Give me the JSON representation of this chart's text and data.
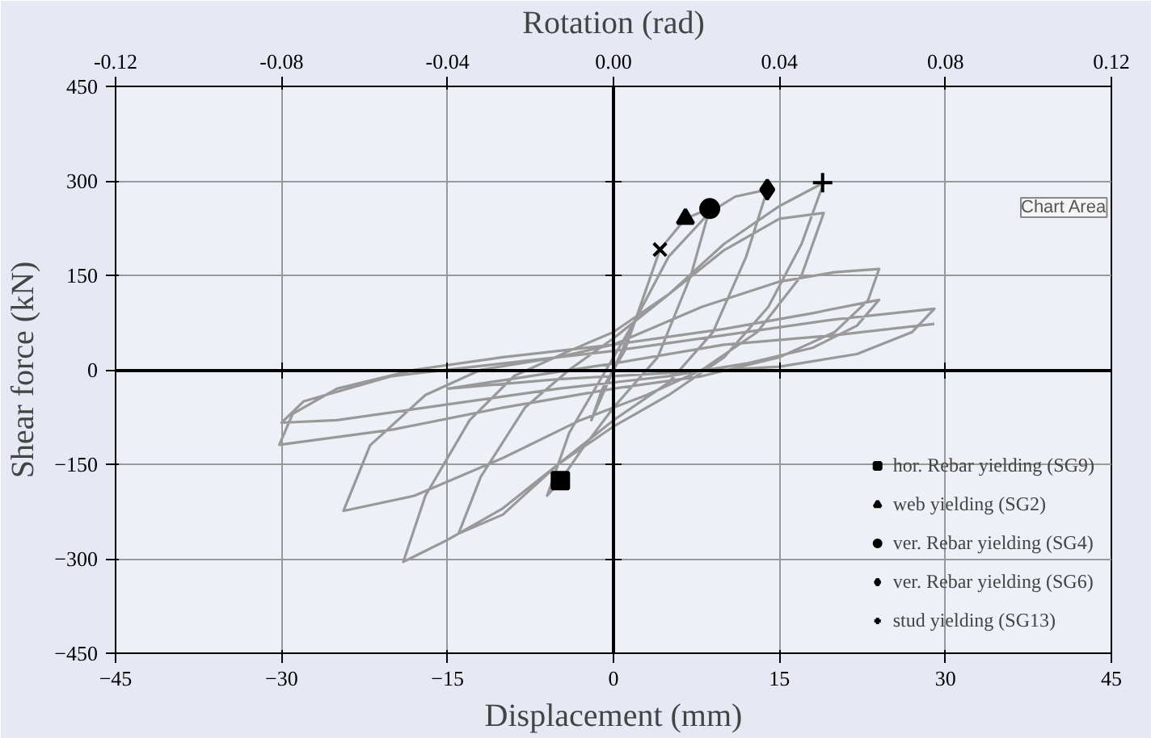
{
  "chart_data": {
    "type": "line",
    "xlabel": "Displacement (mm)",
    "ylabel": "Shear force (kN)",
    "x2label": "Rotation (rad)",
    "xlim": [
      -45,
      45
    ],
    "xticks": [
      -45,
      -30,
      -15,
      0,
      15,
      30,
      45
    ],
    "ylim": [
      -450,
      450
    ],
    "yticks": [
      -450,
      -300,
      -150,
      0,
      150,
      300,
      450
    ],
    "x2lim": [
      -0.12,
      0.12
    ],
    "x2ticks": [
      {
        "value": -0.12,
        "label": "-0.12"
      },
      {
        "value": -0.08,
        "label": "-0.08"
      },
      {
        "value": -0.04,
        "label": "-0.04"
      },
      {
        "value": 0,
        "label": "0.00"
      },
      {
        "value": 0.04,
        "label": "0.04"
      },
      {
        "value": 0.08,
        "label": "0.08"
      },
      {
        "value": 0.12,
        "label": "0.12"
      }
    ],
    "grid": true,
    "legend": "bottom right",
    "annotations": [
      "Chart Area"
    ],
    "series": [
      {
        "type": "line",
        "color": "#999999",
        "marker": "none",
        "line_style": "solid",
        "x": [
          0,
          1,
          2,
          1,
          0,
          -1,
          -2,
          -1,
          0,
          2,
          4.2,
          6.5,
          8.7,
          7,
          4,
          0,
          -3,
          -4.8,
          -6,
          -4,
          -1,
          2,
          5,
          8.7,
          11,
          13.9,
          12,
          9,
          5,
          0,
          -5,
          -10,
          -14,
          -12,
          -8,
          -4,
          0,
          5,
          10,
          15,
          19,
          17,
          14,
          10,
          5,
          0,
          -5,
          -10,
          -15,
          -19,
          -17,
          -13,
          -9,
          -4,
          0,
          5,
          10,
          15,
          19,
          17,
          13,
          8,
          3,
          -3,
          -10,
          -18,
          -24.4,
          -22,
          -17,
          -12,
          -5,
          0,
          8,
          15,
          20,
          24,
          23,
          20,
          15,
          8,
          0,
          -10,
          -20,
          -30.2,
          -29,
          -25,
          -18,
          -10,
          0,
          10,
          18,
          24,
          22,
          18,
          12,
          5,
          -5,
          -15,
          -25,
          -30,
          -28,
          -20,
          -10,
          0,
          10,
          20,
          29,
          27,
          22,
          15,
          5,
          -5,
          -15,
          0,
          10,
          20,
          29
        ],
        "values": [
          0,
          40,
          80,
          30,
          0,
          -40,
          -80,
          -30,
          0,
          80,
          191,
          240,
          256,
          150,
          20,
          -60,
          -130,
          -176,
          -200,
          -100,
          -10,
          80,
          180,
          250,
          275,
          286,
          180,
          60,
          -20,
          -80,
          -150,
          -230,
          -260,
          -170,
          -60,
          0,
          50,
          120,
          200,
          260,
          297,
          200,
          100,
          20,
          -40,
          -90,
          -150,
          -220,
          -270,
          -305,
          -200,
          -80,
          -10,
          30,
          60,
          120,
          190,
          240,
          249,
          150,
          60,
          0,
          -40,
          -80,
          -140,
          -200,
          -224,
          -120,
          -40,
          0,
          20,
          40,
          100,
          140,
          155,
          160,
          110,
          60,
          20,
          -10,
          -30,
          -60,
          -95,
          -119,
          -70,
          -30,
          0,
          20,
          40,
          65,
          90,
          111,
          70,
          35,
          10,
          -10,
          -30,
          -55,
          -80,
          -84,
          -50,
          -10,
          10,
          30,
          55,
          80,
          97,
          60,
          25,
          5,
          -5,
          -15,
          -30,
          10,
          40,
          55,
          73
        ]
      },
      {
        "type": "scatter",
        "name": "hor. Rebar yielding (SG9)",
        "color": "#000000",
        "marker": "square",
        "x": [
          -4.8
        ],
        "values": [
          -176
        ]
      },
      {
        "type": "scatter",
        "name": "web yielding (SG2)",
        "color": "#000000",
        "marker": "triangle",
        "x": [
          6.5
        ],
        "values": [
          240
        ]
      },
      {
        "type": "scatter",
        "name": "ver. Rebar yielding (SG4)",
        "color": "#000000",
        "marker": "circle",
        "x": [
          8.7
        ],
        "values": [
          256
        ]
      },
      {
        "type": "scatter",
        "name": "ver. Rebar yielding (SG6)",
        "color": "#000000",
        "marker": "diamond",
        "x": [
          13.9
        ],
        "values": [
          286
        ]
      },
      {
        "type": "scatter",
        "name": "stud yielding (SG13)",
        "color": "#000000",
        "marker": "cross",
        "x": [
          18.9
        ],
        "values": [
          297
        ]
      },
      {
        "type": "scatter",
        "color": "#000000",
        "marker": "x",
        "x": [
          4.2
        ],
        "values": [
          191
        ]
      }
    ]
  }
}
